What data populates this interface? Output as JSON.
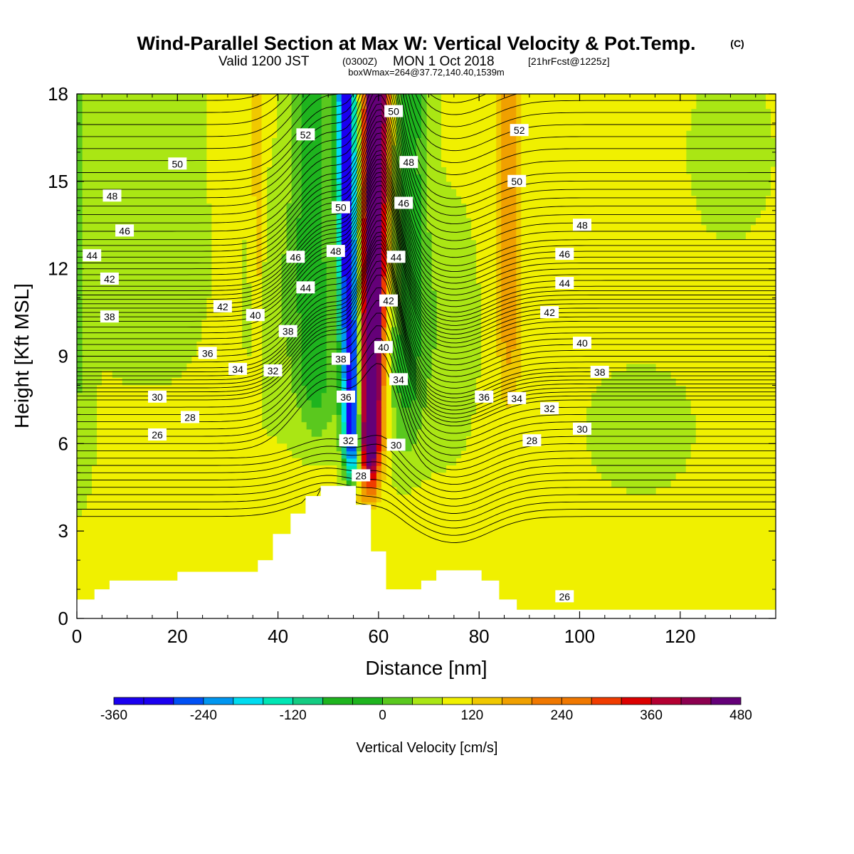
{
  "header": {
    "title": "Wind-Parallel Section at Max W: Vertical Velocity & Pot.Temp.",
    "copyright": "(C)",
    "valid_prefix": "Valid 1200 JST",
    "utc": "(0300Z)",
    "date": "MON 1 Oct 2018",
    "forecast": "[21hrFcst@1225z]",
    "boxw": "boxWmax=264@37.72,140.40,1539m"
  },
  "colors": {
    "ramp": [
      "#1a00f0",
      "#0050f5",
      "#0096f0",
      "#00dcf0",
      "#00e6b4",
      "#14cc82",
      "#1eb41e",
      "#5ac81e",
      "#aae614",
      "#f0f000",
      "#f0c800",
      "#f0a000",
      "#f07800",
      "#f03c00",
      "#dc0000",
      "#b40032",
      "#8c0050",
      "#640078"
    ],
    "terrain": "#ffffff",
    "contour": "#000000"
  },
  "chart_data": {
    "type": "heatmap",
    "xlabel": "Distance [nm]",
    "ylabel": "Height [Kft MSL]",
    "xlim": [
      0,
      139
    ],
    "ylim": [
      0,
      18
    ],
    "xticks": [
      0,
      20,
      40,
      60,
      80,
      100,
      120
    ],
    "yticks": [
      0,
      3,
      6,
      9,
      12,
      15,
      18
    ],
    "colorbar": {
      "label": "Vertical Velocity [cm/s]",
      "levels": [
        -360,
        -320,
        -280,
        -240,
        -200,
        -160,
        -120,
        -80,
        -40,
        0,
        40,
        80,
        120,
        160,
        200,
        240,
        280,
        320,
        360,
        400,
        440,
        480
      ],
      "ticks": [
        -360,
        -240,
        -120,
        0,
        120,
        240,
        360,
        480
      ]
    },
    "terrain_profile_kft": [
      [
        0,
        0.65
      ],
      [
        3.5,
        0.65
      ],
      [
        3.5,
        1.0
      ],
      [
        6.5,
        1.0
      ],
      [
        6.5,
        1.3
      ],
      [
        20,
        1.3
      ],
      [
        20,
        1.6
      ],
      [
        36,
        1.6
      ],
      [
        36,
        2.0
      ],
      [
        39,
        2.0
      ],
      [
        39,
        2.9
      ],
      [
        42.5,
        2.9
      ],
      [
        42.5,
        3.6
      ],
      [
        45.5,
        3.6
      ],
      [
        45.5,
        4.2
      ],
      [
        48.5,
        4.2
      ],
      [
        48.5,
        4.55
      ],
      [
        55.5,
        4.55
      ],
      [
        55.5,
        3.9
      ],
      [
        58.5,
        3.9
      ],
      [
        58.5,
        2.3
      ],
      [
        61.5,
        2.3
      ],
      [
        61.5,
        1.0
      ],
      [
        68.5,
        1.0
      ],
      [
        68.5,
        1.3
      ],
      [
        71.5,
        1.3
      ],
      [
        71.5,
        1.65
      ],
      [
        80.5,
        1.65
      ],
      [
        80.5,
        1.3
      ],
      [
        84,
        1.3
      ],
      [
        84,
        0.65
      ],
      [
        87.5,
        0.65
      ],
      [
        87.5,
        0.3
      ],
      [
        139,
        0.3
      ]
    ],
    "w_field_description": {
      "updraft_max_cm_s": 480,
      "downdraft_min_cm_s": -360,
      "updraft_axis": [
        [
          58,
          4.3
        ],
        [
          59,
          12
        ],
        [
          59.5,
          18
        ]
      ],
      "downdraft_axis": [
        [
          55,
          4.6
        ],
        [
          54,
          12
        ],
        [
          53.5,
          18
        ]
      ]
    },
    "theta_contour_labels": [
      {
        "t": "50",
        "x": 20,
        "y": 15.6
      },
      {
        "t": "48",
        "x": 7,
        "y": 14.5
      },
      {
        "t": "46",
        "x": 9.5,
        "y": 13.3
      },
      {
        "t": "44",
        "x": 3,
        "y": 12.45
      },
      {
        "t": "42",
        "x": 6.5,
        "y": 11.65
      },
      {
        "t": "38",
        "x": 6.5,
        "y": 10.35
      },
      {
        "t": "42",
        "x": 29,
        "y": 10.7
      },
      {
        "t": "40",
        "x": 35.5,
        "y": 10.4
      },
      {
        "t": "36",
        "x": 26,
        "y": 9.1
      },
      {
        "t": "34",
        "x": 32,
        "y": 8.55
      },
      {
        "t": "32",
        "x": 39,
        "y": 8.5
      },
      {
        "t": "30",
        "x": 16,
        "y": 7.6
      },
      {
        "t": "28",
        "x": 22.5,
        "y": 6.9
      },
      {
        "t": "26",
        "x": 16,
        "y": 6.3
      },
      {
        "t": "52",
        "x": 45.5,
        "y": 16.6
      },
      {
        "t": "46",
        "x": 43.5,
        "y": 12.4
      },
      {
        "t": "44",
        "x": 45.5,
        "y": 11.35
      },
      {
        "t": "38",
        "x": 42,
        "y": 9.85
      },
      {
        "t": "50",
        "x": 52.5,
        "y": 14.1
      },
      {
        "t": "48",
        "x": 51.5,
        "y": 12.6
      },
      {
        "t": "38",
        "x": 52.5,
        "y": 8.9
      },
      {
        "t": "36",
        "x": 53.5,
        "y": 7.6
      },
      {
        "t": "32",
        "x": 54,
        "y": 6.1
      },
      {
        "t": "28",
        "x": 56.5,
        "y": 4.9
      },
      {
        "t": "50",
        "x": 63,
        "y": 17.4
      },
      {
        "t": "48",
        "x": 66,
        "y": 15.65
      },
      {
        "t": "46",
        "x": 65,
        "y": 14.25
      },
      {
        "t": "44",
        "x": 63.5,
        "y": 12.4
      },
      {
        "t": "42",
        "x": 62,
        "y": 10.9
      },
      {
        "t": "40",
        "x": 61,
        "y": 9.3
      },
      {
        "t": "34",
        "x": 64,
        "y": 8.2
      },
      {
        "t": "30",
        "x": 63.5,
        "y": 5.95
      },
      {
        "t": "52",
        "x": 88,
        "y": 16.75
      },
      {
        "t": "50",
        "x": 87.5,
        "y": 15.0
      },
      {
        "t": "48",
        "x": 100.5,
        "y": 13.5
      },
      {
        "t": "46",
        "x": 97,
        "y": 12.5
      },
      {
        "t": "44",
        "x": 97,
        "y": 11.5
      },
      {
        "t": "42",
        "x": 94,
        "y": 10.5
      },
      {
        "t": "40",
        "x": 100.5,
        "y": 9.45
      },
      {
        "t": "38",
        "x": 104,
        "y": 8.45
      },
      {
        "t": "36",
        "x": 81,
        "y": 7.6
      },
      {
        "t": "34",
        "x": 87.5,
        "y": 7.55
      },
      {
        "t": "32",
        "x": 94,
        "y": 7.2
      },
      {
        "t": "30",
        "x": 100.5,
        "y": 6.5
      },
      {
        "t": "28",
        "x": 90.5,
        "y": 6.1
      },
      {
        "t": "26",
        "x": 97,
        "y": 0.75
      }
    ]
  }
}
